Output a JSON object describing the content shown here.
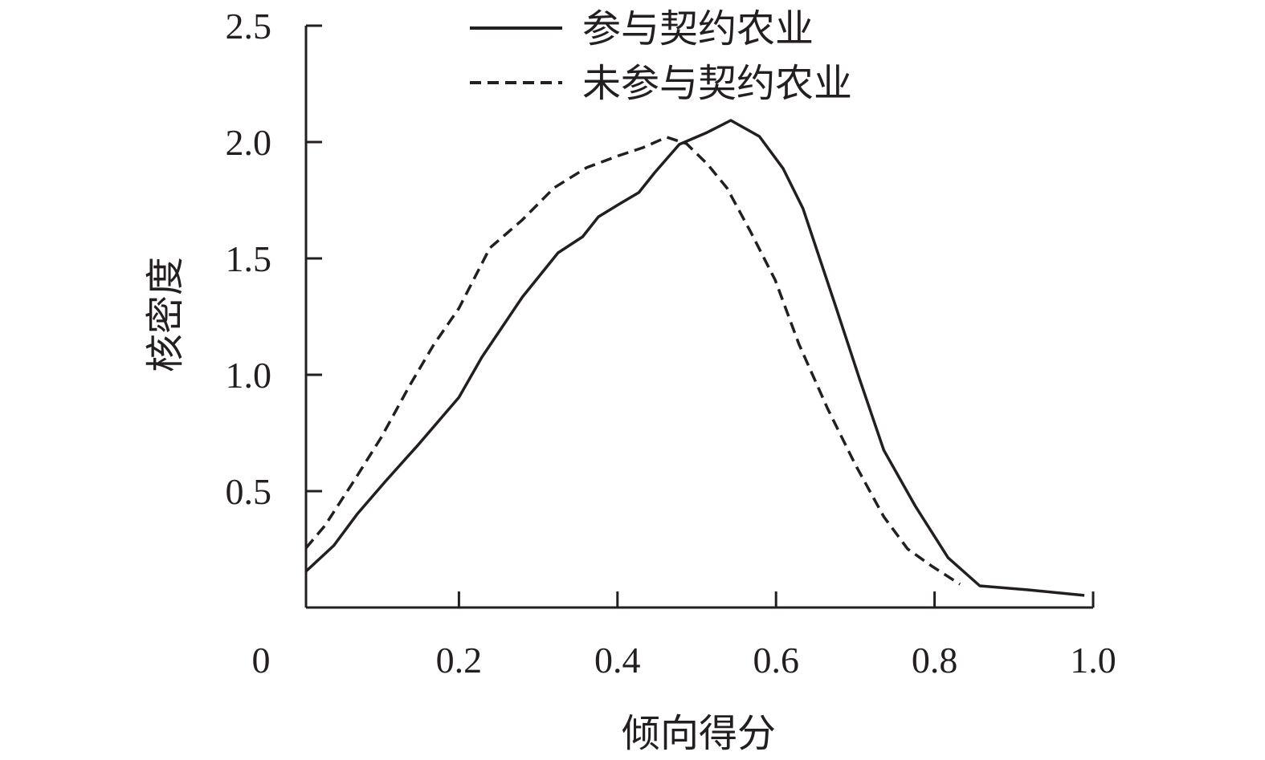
{
  "chart_data": {
    "type": "line",
    "title": "",
    "xlabel": "倾向得分",
    "ylabel": "核密度",
    "xlim": [
      0,
      1.0
    ],
    "ylim": [
      0,
      2.5
    ],
    "xticks": [
      "0",
      "0.2",
      "0.4",
      "0.6",
      "0.8",
      "1.0"
    ],
    "xtick_values": [
      0,
      0.2,
      0.4,
      0.6,
      0.8,
      1.0
    ],
    "yticks": [
      "0.5",
      "1.0",
      "1.5",
      "2.0",
      "2.5"
    ],
    "ytick_values": [
      0.5,
      1.0,
      1.5,
      2.0,
      2.5
    ],
    "grid": false,
    "legend_position": "top",
    "series": [
      {
        "name": "参与契约农业",
        "style": "solid",
        "color": "#231f20",
        "x": [
          0.007,
          0.042,
          0.072,
          0.107,
          0.148,
          0.2,
          0.229,
          0.28,
          0.325,
          0.356,
          0.376,
          0.401,
          0.427,
          0.447,
          0.478,
          0.513,
          0.543,
          0.579,
          0.609,
          0.634,
          0.675,
          0.705,
          0.736,
          0.776,
          0.817,
          0.857,
          0.918,
          0.989
        ],
        "y": [
          0.155,
          0.266,
          0.403,
          0.541,
          0.697,
          0.903,
          1.076,
          1.334,
          1.524,
          1.593,
          1.679,
          1.731,
          1.783,
          1.869,
          1.99,
          2.041,
          2.093,
          2.024,
          1.886,
          1.714,
          1.297,
          0.986,
          0.676,
          0.434,
          0.214,
          0.093,
          0.076,
          0.052
        ]
      },
      {
        "name": "未参与契约农业",
        "style": "dashed",
        "color": "#231f20",
        "x": [
          0.007,
          0.031,
          0.067,
          0.102,
          0.138,
          0.168,
          0.2,
          0.239,
          0.28,
          0.32,
          0.361,
          0.401,
          0.432,
          0.462,
          0.487,
          0.513,
          0.538,
          0.568,
          0.599,
          0.629,
          0.665,
          0.7,
          0.736,
          0.766,
          0.796,
          0.832
        ],
        "y": [
          0.255,
          0.352,
          0.541,
          0.731,
          0.955,
          1.128,
          1.286,
          1.545,
          1.666,
          1.803,
          1.89,
          1.941,
          1.976,
          2.021,
          1.993,
          1.907,
          1.803,
          1.614,
          1.407,
          1.131,
          0.855,
          0.614,
          0.39,
          0.252,
          0.179,
          0.1
        ]
      }
    ]
  }
}
